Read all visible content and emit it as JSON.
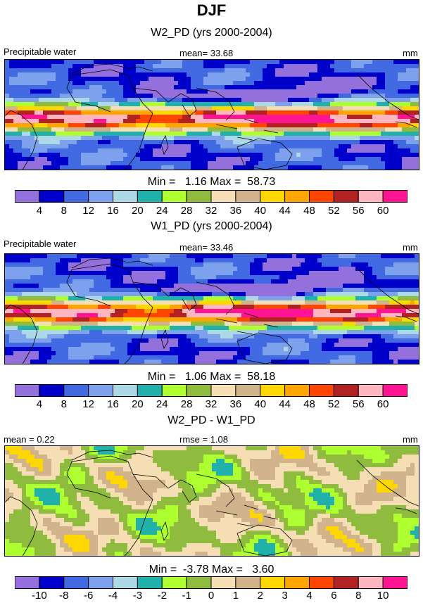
{
  "title": "DJF",
  "colors": {
    "abs_palette": [
      "#9370db",
      "#0000cd",
      "#4169e1",
      "#7ea1ee",
      "#add8e6",
      "#20b2aa",
      "#adff2f",
      "#8fbc3f",
      "#f5deb3",
      "#d2b48c",
      "#ffd700",
      "#ffa500",
      "#ff4500",
      "#b22222",
      "#ffb6c1",
      "#ff1493"
    ],
    "diff_palette": [
      "#9370db",
      "#0000cd",
      "#4169e1",
      "#7ea1ee",
      "#add8e6",
      "#20b2aa",
      "#adff2f",
      "#8fbc3f",
      "#f5deb3",
      "#d2b48c",
      "#ffd700",
      "#ffa500",
      "#ff4500",
      "#b22222",
      "#ffb6c1",
      "#ff1493"
    ],
    "coast": "#000000"
  },
  "panels": [
    {
      "title": "W2_PD (yrs 2000-2004)",
      "left_label": "Precipitable water",
      "center_label": "mean=  33.68",
      "right_label": "mm",
      "minmax": "Min =   1.16 Max =  58.73"
    },
    {
      "title": "W1_PD (yrs 2000-2004)",
      "left_label": "Precipitable water",
      "center_label": "mean=  33.46",
      "right_label": "mm",
      "minmax": "Min =   1.06 Max =  58.18"
    },
    {
      "title": "W2_PD - W1_PD",
      "left_label": "mean =   0.22",
      "center_label": "rmse =   1.08",
      "right_label": "mm",
      "minmax": "Min =  -3.78 Max =   3.60"
    }
  ],
  "chart_data": [
    {
      "type": "heatmap",
      "title": "W2_PD (yrs 2000-2004)",
      "variable": "Precipitable water",
      "units": "mm",
      "mean": 33.68,
      "min": 1.16,
      "max": 58.73,
      "levels": [
        4,
        8,
        12,
        16,
        20,
        24,
        28,
        32,
        36,
        40,
        44,
        48,
        52,
        56,
        60
      ]
    },
    {
      "type": "heatmap",
      "title": "W1_PD (yrs 2000-2004)",
      "variable": "Precipitable water",
      "units": "mm",
      "mean": 33.46,
      "min": 1.06,
      "max": 58.18,
      "levels": [
        4,
        8,
        12,
        16,
        20,
        24,
        28,
        32,
        36,
        40,
        44,
        48,
        52,
        56,
        60
      ]
    },
    {
      "type": "heatmap",
      "title": "W2_PD - W1_PD",
      "units": "mm",
      "mean": 0.22,
      "rmse": 1.08,
      "min": -3.78,
      "max": 3.6,
      "levels": [
        -10,
        -8,
        -6,
        -4,
        -3,
        -2,
        -1,
        0,
        1,
        2,
        3,
        4,
        6,
        8,
        10
      ]
    }
  ],
  "colorbars": [
    {
      "labels": [
        "4",
        "8",
        "12",
        "16",
        "20",
        "24",
        "28",
        "32",
        "36",
        "40",
        "44",
        "48",
        "52",
        "56",
        "60"
      ]
    },
    {
      "labels": [
        "4",
        "8",
        "12",
        "16",
        "20",
        "24",
        "28",
        "32",
        "36",
        "40",
        "44",
        "48",
        "52",
        "56",
        "60"
      ]
    },
    {
      "labels": [
        "-10",
        "-8",
        "-6",
        "-4",
        "-3",
        "-2",
        "-1",
        "0",
        "1",
        "2",
        "3",
        "4",
        "6",
        "8",
        "10"
      ]
    }
  ]
}
